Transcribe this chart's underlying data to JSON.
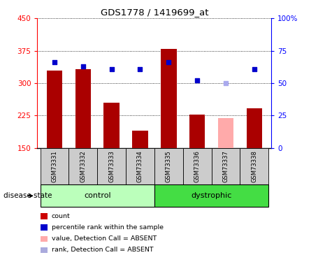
{
  "title": "GDS1778 / 1419699_at",
  "samples": [
    "GSM73331",
    "GSM73332",
    "GSM73333",
    "GSM73334",
    "GSM73335",
    "GSM73336",
    "GSM73337",
    "GSM73338"
  ],
  "bar_values": [
    330,
    332,
    255,
    190,
    380,
    228,
    220,
    242
  ],
  "bar_colors": [
    "#aa0000",
    "#aa0000",
    "#aa0000",
    "#aa0000",
    "#aa0000",
    "#aa0000",
    "#ffaaaa",
    "#aa0000"
  ],
  "dot_values": [
    66,
    63,
    61,
    61,
    66,
    52,
    50,
    61
  ],
  "dot_colors": [
    "#0000cc",
    "#0000cc",
    "#0000cc",
    "#0000cc",
    "#0000cc",
    "#0000cc",
    "#aaaaee",
    "#0000cc"
  ],
  "ylim_left": [
    150,
    450
  ],
  "ylim_right": [
    0,
    100
  ],
  "yticks_left": [
    150,
    225,
    300,
    375,
    450
  ],
  "yticks_right": [
    0,
    25,
    50,
    75,
    100
  ],
  "control_samples": 4,
  "dystrophic_samples": 4,
  "control_label": "control",
  "dystrophic_label": "dystrophic",
  "group_label": "disease state",
  "control_color_light": "#bbffbb",
  "dystrophic_color": "#44dd44",
  "sample_box_color": "#cccccc",
  "legend_items": [
    {
      "label": "count",
      "color": "#cc0000"
    },
    {
      "label": "percentile rank within the sample",
      "color": "#0000cc"
    },
    {
      "label": "value, Detection Call = ABSENT",
      "color": "#ffaaaa"
    },
    {
      "label": "rank, Detection Call = ABSENT",
      "color": "#aaaadd"
    }
  ]
}
